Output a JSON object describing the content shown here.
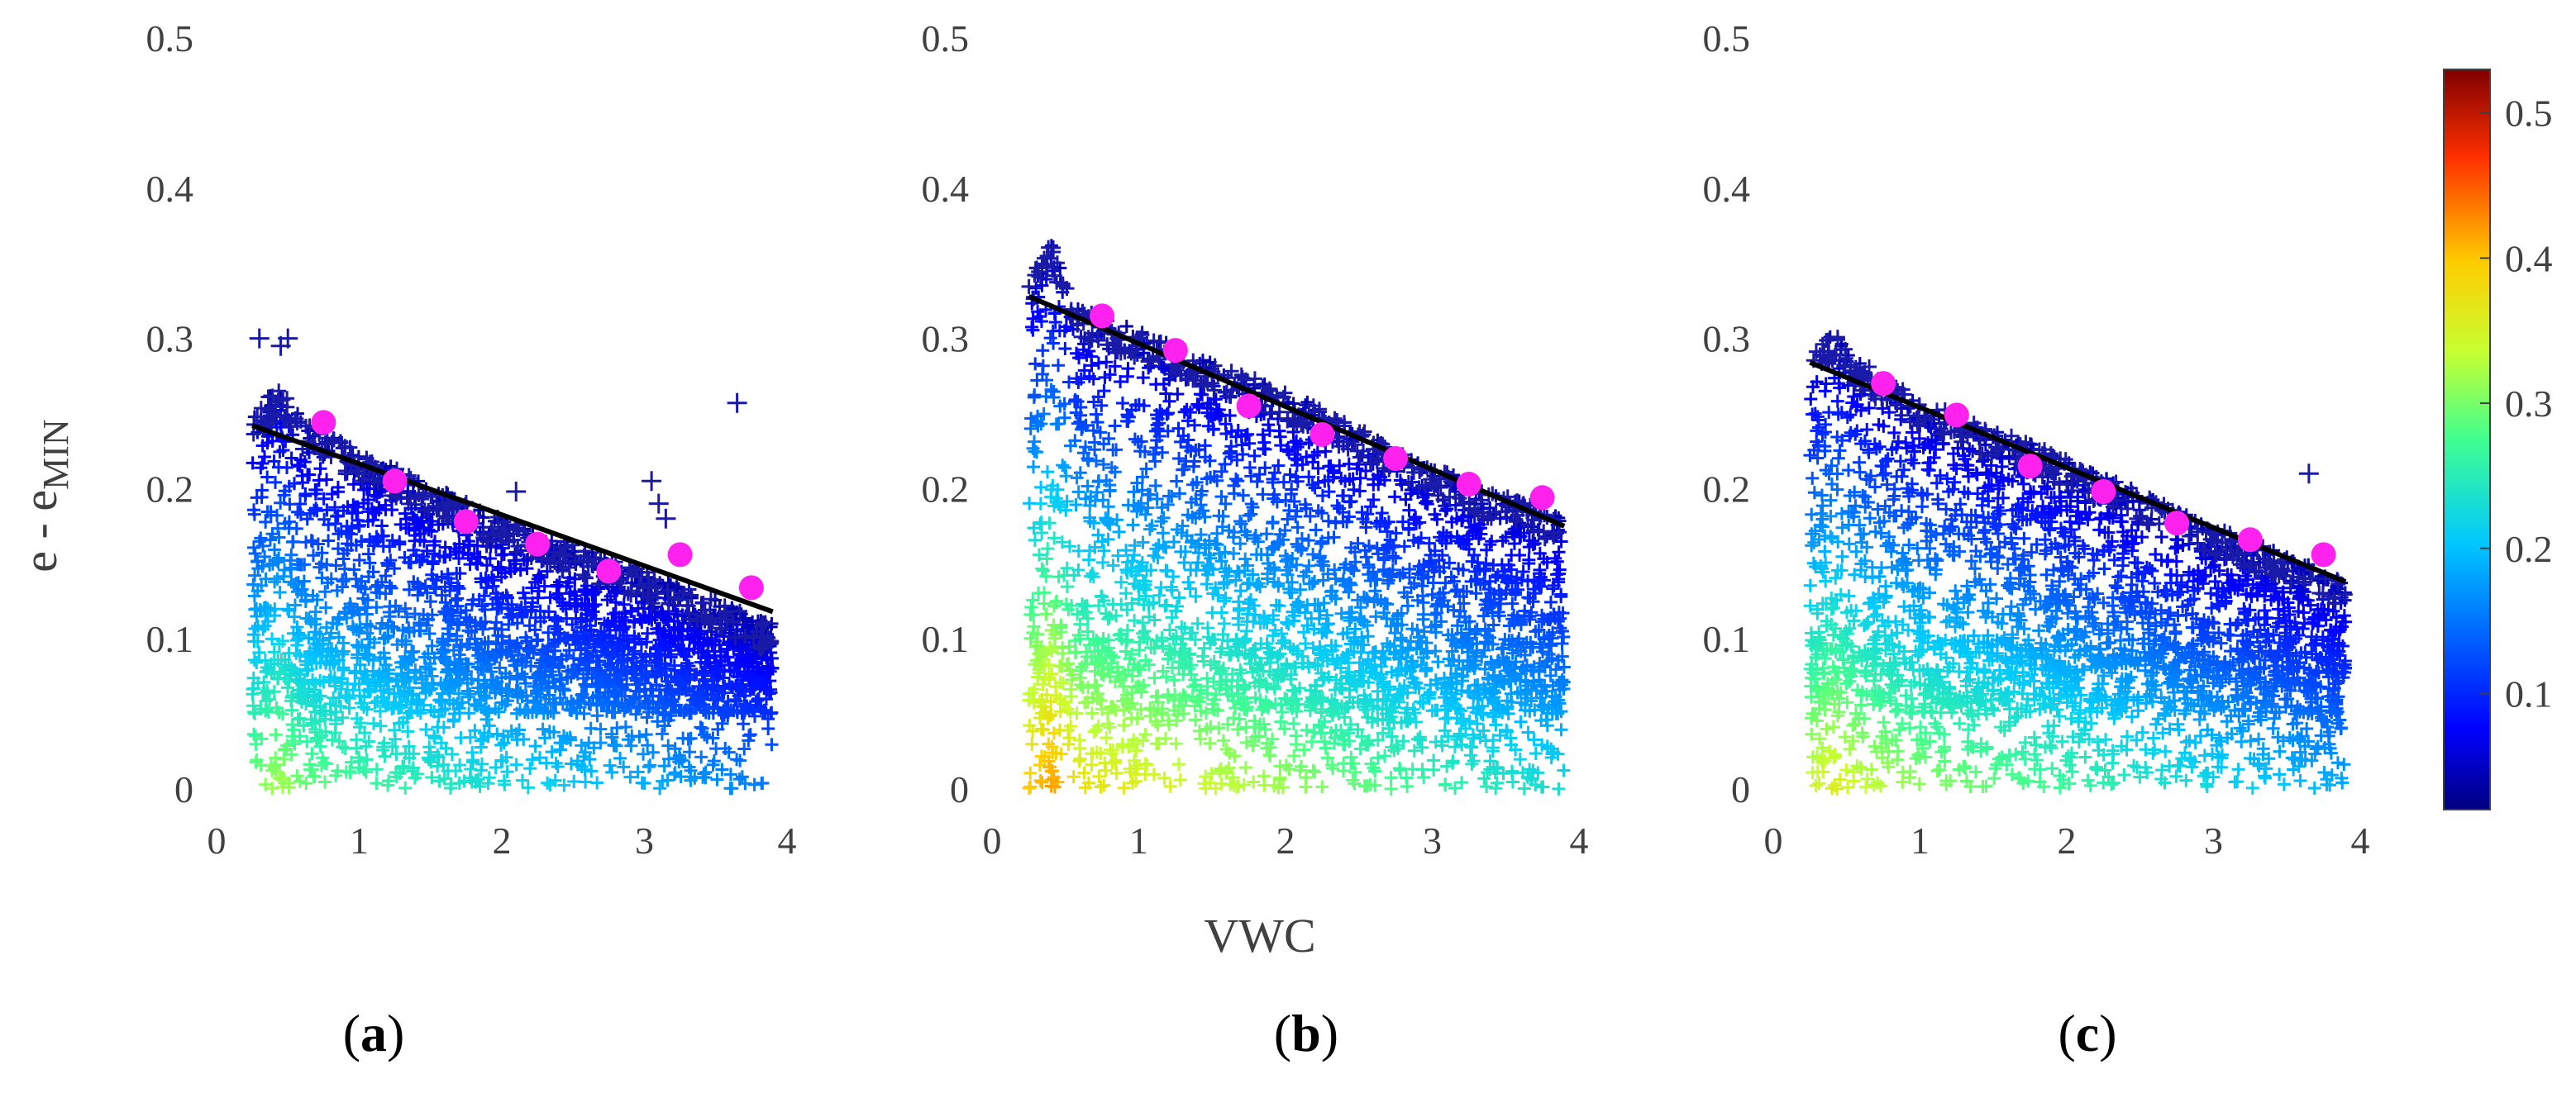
{
  "figure": {
    "ylabel": "e - e",
    "ylabel_subscript": "MIN",
    "xlabel": "VWC",
    "colorbar": {
      "min": 0.02,
      "max": 0.53,
      "ticks": [
        "0.1",
        "0.2",
        "0.3",
        "0.4",
        "0.5"
      ],
      "colormap": "jet"
    },
    "colors": {
      "fit_line": "#000000",
      "mean_points": "#ff22ee",
      "axis_text": "#404040"
    }
  },
  "chart_data": [
    {
      "type": "scatter",
      "panel_label": "a",
      "xlim": [
        0,
        4
      ],
      "ylim": [
        0,
        0.5
      ],
      "xticks": [
        "0",
        "1",
        "2",
        "3",
        "4"
      ],
      "yticks": [
        "0",
        "0.1",
        "0.2",
        "0.3",
        "0.4",
        "0.5"
      ],
      "scatter_x_range": [
        0.25,
        3.9
      ],
      "scatter_envelope_upper": {
        "x": [
          0.25,
          0.45,
          0.6,
          1.0,
          2.0,
          3.0,
          3.9
        ],
        "y": [
          0.25,
          0.27,
          0.245,
          0.225,
          0.18,
          0.145,
          0.11
        ]
      },
      "scatter_outliers": [
        {
          "x": 0.3,
          "y": 0.3
        },
        {
          "x": 0.45,
          "y": 0.295
        },
        {
          "x": 0.5,
          "y": 0.3
        },
        {
          "x": 2.1,
          "y": 0.198
        },
        {
          "x": 3.05,
          "y": 0.205
        },
        {
          "x": 3.1,
          "y": 0.19
        },
        {
          "x": 3.15,
          "y": 0.18
        },
        {
          "x": 3.65,
          "y": 0.257
        }
      ],
      "mean_points": {
        "x": [
          0.75,
          1.25,
          1.75,
          2.25,
          2.75,
          3.25,
          3.75
        ],
        "y": [
          0.244,
          0.205,
          0.178,
          0.163,
          0.145,
          0.156,
          0.134
        ]
      },
      "fit_line": {
        "x": [
          0.25,
          3.9
        ],
        "y": [
          0.242,
          0.118
        ]
      }
    },
    {
      "type": "scatter",
      "panel_label": "b",
      "xlim": [
        0,
        4
      ],
      "ylim": [
        0,
        0.5
      ],
      "xticks": [
        "0",
        "1",
        "2",
        "3",
        "4"
      ],
      "yticks": [
        "0",
        "0.1",
        "0.2",
        "0.3",
        "0.4",
        "0.5"
      ],
      "scatter_x_range": [
        0.25,
        3.9
      ],
      "scatter_envelope_upper": {
        "x": [
          0.25,
          0.4,
          0.6,
          1.0,
          2.0,
          3.0,
          3.9
        ],
        "y": [
          0.34,
          0.365,
          0.32,
          0.305,
          0.265,
          0.215,
          0.18
        ]
      },
      "scatter_outliers": [],
      "mean_points": {
        "x": [
          0.75,
          1.25,
          1.75,
          2.25,
          2.75,
          3.25,
          3.75
        ],
        "y": [
          0.315,
          0.292,
          0.255,
          0.236,
          0.22,
          0.203,
          0.194
        ]
      },
      "fit_line": {
        "x": [
          0.25,
          3.9
        ],
        "y": [
          0.328,
          0.175
        ]
      }
    },
    {
      "type": "scatter",
      "panel_label": "c",
      "xlim": [
        0,
        4
      ],
      "ylim": [
        0,
        0.5
      ],
      "xticks": [
        "0",
        "1",
        "2",
        "3",
        "4"
      ],
      "yticks": [
        "0",
        "0.1",
        "0.2",
        "0.3",
        "0.4",
        "0.5"
      ],
      "scatter_x_range": [
        0.25,
        3.9
      ],
      "scatter_envelope_upper": {
        "x": [
          0.25,
          0.4,
          0.6,
          1.0,
          2.0,
          3.0,
          3.9
        ],
        "y": [
          0.29,
          0.305,
          0.285,
          0.26,
          0.22,
          0.175,
          0.14
        ]
      },
      "scatter_outliers": [
        {
          "x": 3.65,
          "y": 0.21
        }
      ],
      "mean_points": {
        "x": [
          0.75,
          1.25,
          1.75,
          2.25,
          2.75,
          3.25,
          3.75
        ],
        "y": [
          0.27,
          0.249,
          0.215,
          0.198,
          0.177,
          0.166,
          0.156
        ]
      },
      "fit_line": {
        "x": [
          0.25,
          3.9
        ],
        "y": [
          0.284,
          0.138
        ]
      }
    }
  ]
}
